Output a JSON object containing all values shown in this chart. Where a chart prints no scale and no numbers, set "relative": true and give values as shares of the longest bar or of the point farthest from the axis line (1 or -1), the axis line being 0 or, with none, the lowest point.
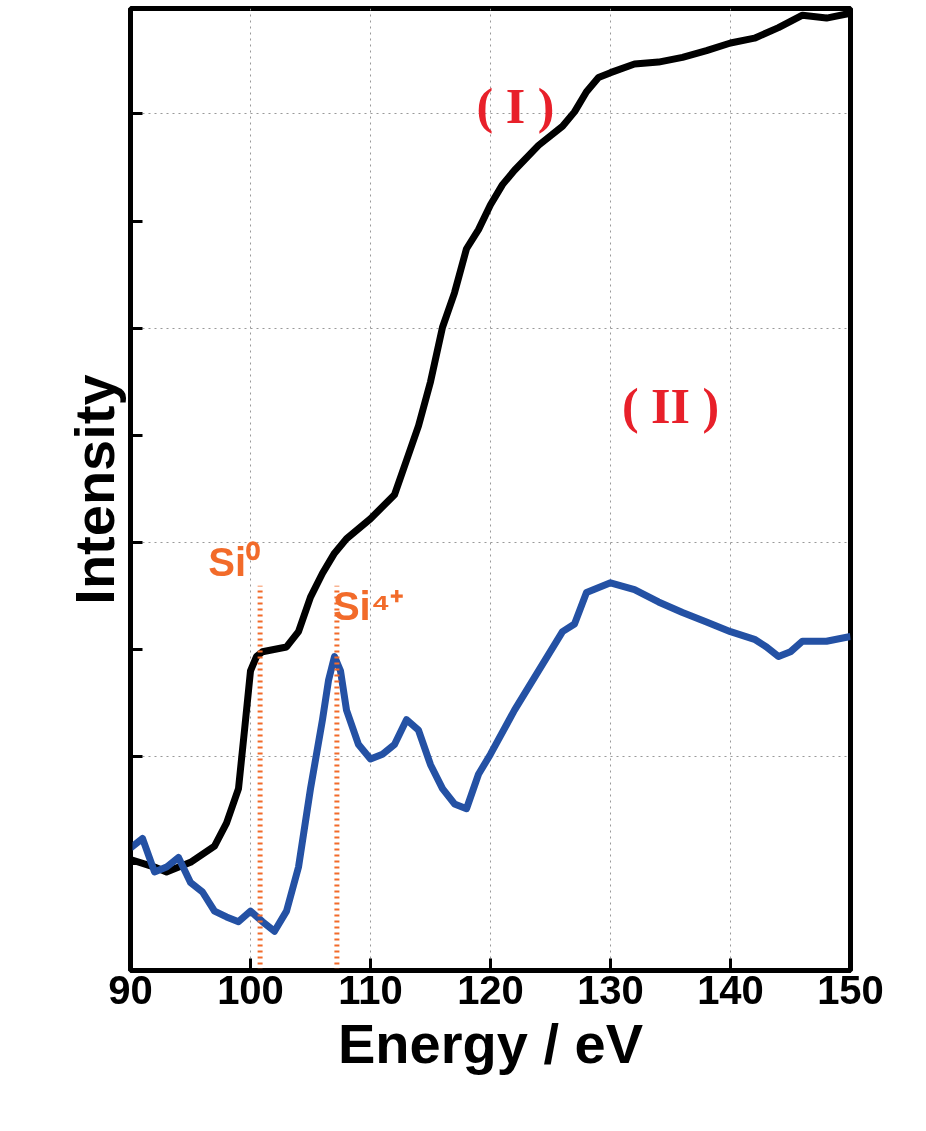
{
  "chart_data": {
    "type": "line",
    "relative": true,
    "xlabel": "Energy / eV",
    "ylabel": "Intensity",
    "xlim": [
      90,
      150
    ],
    "xticks": [
      90,
      100,
      110,
      120,
      130,
      140,
      150
    ],
    "grid": true,
    "line_style": "solid",
    "marker": "none",
    "series": [
      {
        "color": "#000000",
        "x": [
          90,
          92,
          93,
          95,
          97,
          98,
          99,
          99.5,
          100,
          100.5,
          101,
          103,
          104,
          105,
          106,
          107,
          108,
          110,
          112,
          113,
          114,
          115,
          116,
          117,
          118,
          119,
          120,
          121,
          122,
          124,
          126,
          127,
          128,
          129,
          130,
          132,
          134,
          136,
          138,
          140,
          142,
          144,
          146,
          148,
          150
        ],
        "values": [
          0.116,
          0.108,
          0.103,
          0.113,
          0.13,
          0.154,
          0.19,
          0.251,
          0.313,
          0.328,
          0.333,
          0.338,
          0.354,
          0.39,
          0.415,
          0.436,
          0.451,
          0.472,
          0.497,
          0.533,
          0.569,
          0.615,
          0.672,
          0.708,
          0.754,
          0.774,
          0.8,
          0.821,
          0.836,
          0.862,
          0.882,
          0.897,
          0.918,
          0.933,
          0.938,
          0.947,
          0.949,
          0.954,
          0.961,
          0.969,
          0.974,
          0.985,
          0.998,
          0.995,
          1.0
        ]
      },
      {
        "color": "#2451a4",
        "x": [
          90,
          91,
          92,
          93,
          94,
          95,
          96,
          97,
          98,
          99,
          100,
          101,
          102,
          103,
          104,
          105,
          106,
          106.5,
          107,
          107.5,
          108,
          109,
          110,
          111,
          112,
          113,
          114,
          115,
          116,
          117,
          118,
          119,
          120,
          122,
          124,
          126,
          127,
          128,
          130,
          132,
          134,
          136,
          138,
          140,
          142,
          143,
          144,
          145,
          146,
          148,
          150
        ],
        "values": [
          0.128,
          0.138,
          0.103,
          0.108,
          0.118,
          0.092,
          0.082,
          0.062,
          0.056,
          0.051,
          0.062,
          0.051,
          0.041,
          0.062,
          0.108,
          0.19,
          0.262,
          0.303,
          0.328,
          0.313,
          0.272,
          0.236,
          0.221,
          0.226,
          0.236,
          0.262,
          0.251,
          0.215,
          0.19,
          0.174,
          0.169,
          0.205,
          0.226,
          0.272,
          0.313,
          0.354,
          0.362,
          0.395,
          0.405,
          0.398,
          0.385,
          0.374,
          0.364,
          0.354,
          0.346,
          0.338,
          0.328,
          0.333,
          0.344,
          0.344,
          0.349
        ]
      }
    ],
    "ref_lines": [
      {
        "axis": "x",
        "value": 100.8,
        "label": "Si⁰",
        "color": "#f26b2a",
        "line_style": "dotted"
      },
      {
        "axis": "x",
        "value": 107.2,
        "label": "Si⁴⁺",
        "color": "#f26b2a",
        "line_style": "dotted"
      }
    ],
    "annotations": [
      "( I )",
      "( II )"
    ]
  }
}
